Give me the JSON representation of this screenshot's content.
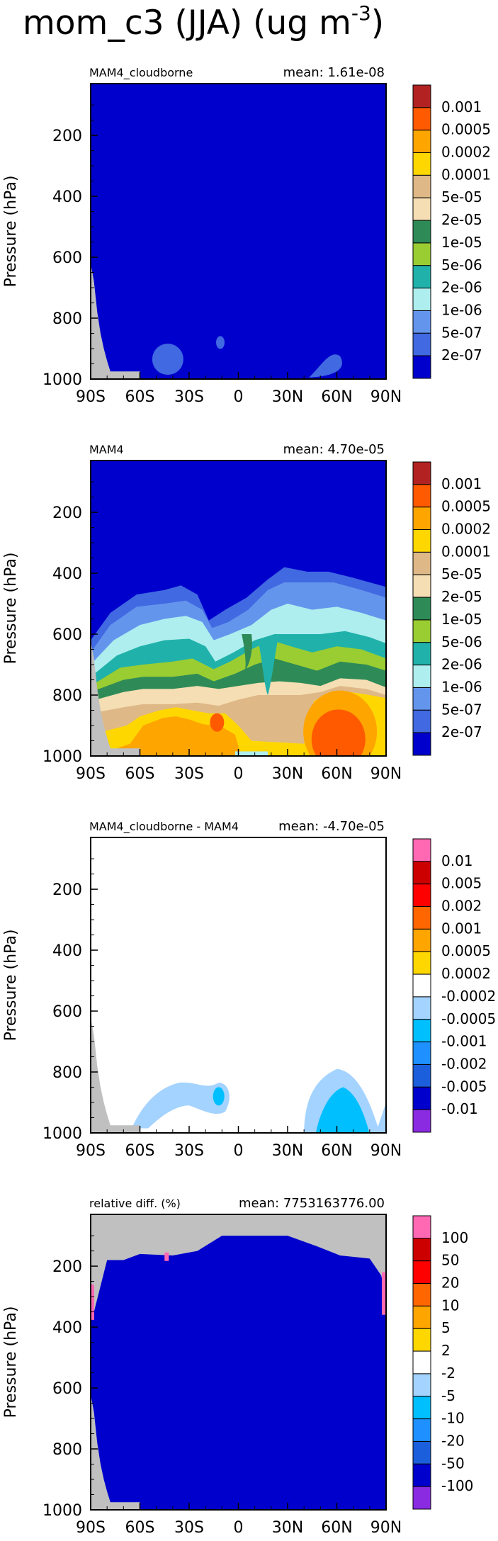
{
  "figure": {
    "title_main": "mom_c3 (JJA) (ug m",
    "title_exp": "-3",
    "title_close": ")"
  },
  "colors": {
    "land": "#c0c0c0",
    "frame": "#000000",
    "bg": "#ffffff"
  },
  "chart_data": [
    {
      "type": "heatmap",
      "title_left": "MAM4_cloudborne",
      "title_right": "mean: 1.61e-08",
      "ylabel": "Pressure (hPa)",
      "x_ticks": [
        "90S",
        "60S",
        "30S",
        "0",
        "30N",
        "60N",
        "90N"
      ],
      "x_tick_values": [
        -90,
        -60,
        -30,
        0,
        30,
        60,
        90
      ],
      "y_ticks": [
        "200",
        "400",
        "600",
        "800",
        "1000"
      ],
      "y_tick_values": [
        200,
        400,
        600,
        800,
        1000
      ],
      "xlim": [
        -90,
        90
      ],
      "ylim": [
        1000,
        30
      ],
      "legend_labels": [
        "0.001",
        "0.0005",
        "0.0002",
        "0.0001",
        "5e-05",
        "2e-05",
        "1e-05",
        "5e-06",
        "2e-06",
        "1e-06",
        "5e-07",
        "2e-07"
      ],
      "legend_colors": [
        "#b22222",
        "#ff5a00",
        "#ffa500",
        "#ffd700",
        "#deb887",
        "#f5deb3",
        "#2e8b57",
        "#9acd32",
        "#20b2aa",
        "#afeeee",
        "#6495ed",
        "#4169e1",
        "#0000cd"
      ]
    },
    {
      "type": "heatmap",
      "title_left": "MAM4",
      "title_right": "mean: 4.70e-05",
      "ylabel": "Pressure (hPa)",
      "x_ticks": [
        "90S",
        "60S",
        "30S",
        "0",
        "30N",
        "60N",
        "90N"
      ],
      "x_tick_values": [
        -90,
        -60,
        -30,
        0,
        30,
        60,
        90
      ],
      "y_ticks": [
        "200",
        "400",
        "600",
        "800",
        "1000"
      ],
      "y_tick_values": [
        200,
        400,
        600,
        800,
        1000
      ],
      "xlim": [
        -90,
        90
      ],
      "ylim": [
        1000,
        30
      ],
      "legend_labels": [
        "0.001",
        "0.0005",
        "0.0002",
        "0.0001",
        "5e-05",
        "2e-05",
        "1e-05",
        "5e-06",
        "2e-06",
        "1e-06",
        "5e-07",
        "2e-07"
      ],
      "legend_colors": [
        "#b22222",
        "#ff5a00",
        "#ffa500",
        "#ffd700",
        "#deb887",
        "#f5deb3",
        "#2e8b57",
        "#9acd32",
        "#20b2aa",
        "#afeeee",
        "#6495ed",
        "#4169e1",
        "#0000cd"
      ]
    },
    {
      "type": "heatmap",
      "title_left": "MAM4_cloudborne - MAM4",
      "title_right": "mean: -4.70e-05",
      "ylabel": "Pressure (hPa)",
      "x_ticks": [
        "90S",
        "60S",
        "30S",
        "0",
        "30N",
        "60N",
        "90N"
      ],
      "x_tick_values": [
        -90,
        -60,
        -30,
        0,
        30,
        60,
        90
      ],
      "y_ticks": [
        "200",
        "400",
        "600",
        "800",
        "1000"
      ],
      "y_tick_values": [
        200,
        400,
        600,
        800,
        1000
      ],
      "xlim": [
        -90,
        90
      ],
      "ylim": [
        1000,
        30
      ],
      "legend_labels": [
        "0.01",
        "0.005",
        "0.002",
        "0.001",
        "0.0005",
        "0.0002",
        "-0.0002",
        "-0.0005",
        "-0.001",
        "-0.002",
        "-0.005",
        "-0.01"
      ],
      "legend_colors": [
        "#ff69b4",
        "#cd0000",
        "#ff0000",
        "#ff6600",
        "#ffa500",
        "#ffd700",
        "#ffffff",
        "#a4d3ff",
        "#00bfff",
        "#1e90ff",
        "#1c5fdc",
        "#0000cd",
        "#8a2be2"
      ]
    },
    {
      "type": "heatmap",
      "title_left": "relative diff. (%)",
      "title_right": "mean: 7753163776.00",
      "ylabel": "Pressure (hPa)",
      "x_ticks": [
        "90S",
        "60S",
        "30S",
        "0",
        "30N",
        "60N",
        "90N"
      ],
      "x_tick_values": [
        -90,
        -60,
        -30,
        0,
        30,
        60,
        90
      ],
      "y_ticks": [
        "200",
        "400",
        "600",
        "800",
        "1000"
      ],
      "y_tick_values": [
        200,
        400,
        600,
        800,
        1000
      ],
      "xlim": [
        -90,
        90
      ],
      "ylim": [
        1000,
        30
      ],
      "legend_labels": [
        "100",
        "50",
        "20",
        "10",
        "5",
        "2",
        "-2",
        "-5",
        "-10",
        "-20",
        "-50",
        "-100"
      ],
      "legend_colors": [
        "#ff69b4",
        "#cd0000",
        "#ff0000",
        "#ff6600",
        "#ffa500",
        "#ffd700",
        "#ffffff",
        "#a4d3ff",
        "#00bfff",
        "#1e90ff",
        "#1c5fdc",
        "#0000cd",
        "#8a2be2"
      ]
    }
  ]
}
